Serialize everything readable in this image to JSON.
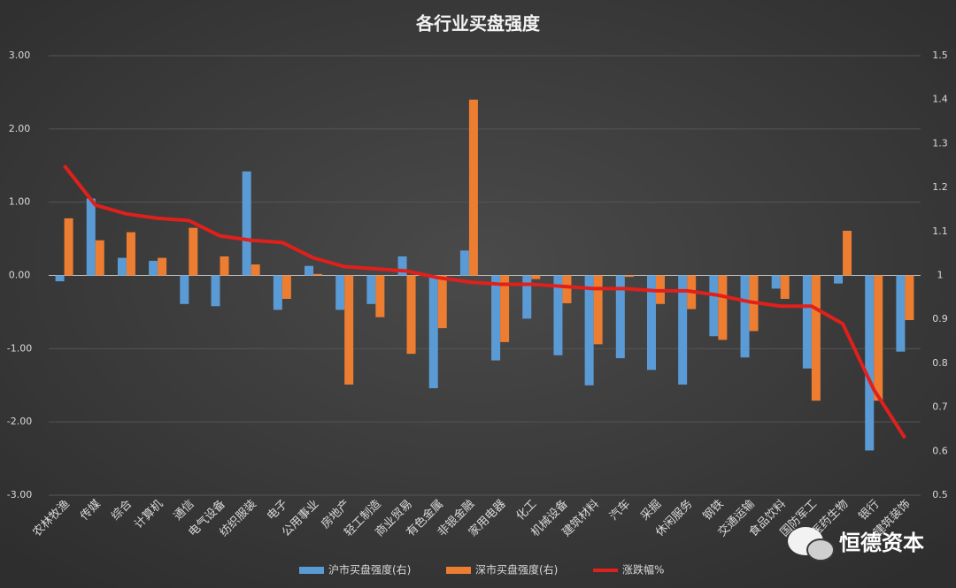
{
  "chart_data": {
    "type": "bar_line",
    "title": "各行业买盘强度",
    "watermark": "恒德资本",
    "categories": [
      "农林牧渔",
      "传媒",
      "综合",
      "计算机",
      "通信",
      "电气设备",
      "纺织服装",
      "电子",
      "公用事业",
      "房地产",
      "轻工制造",
      "商业贸易",
      "有色金属",
      "非银金融",
      "家用电器",
      "化工",
      "机械设备",
      "建筑材料",
      "汽车",
      "采掘",
      "休闲服务",
      "钢铁",
      "交通运输",
      "食品饮料",
      "国防军工",
      "医药生物",
      "银行",
      "建筑装饰"
    ],
    "series": [
      {
        "name": "沪市买盘强度(右)",
        "type": "bar",
        "color": "#5b9bd5",
        "values": [
          -0.08,
          1.05,
          0.24,
          0.2,
          -0.39,
          -0.42,
          1.42,
          -0.47,
          0.13,
          -0.47,
          -0.39,
          0.26,
          -1.54,
          0.34,
          -1.16,
          -0.59,
          -1.09,
          -1.5,
          -1.13,
          -1.29,
          -1.49,
          -0.83,
          -1.12,
          -0.18,
          -1.27,
          -0.11,
          -2.39,
          -1.04
        ]
      },
      {
        "name": "深市买盘强度(右)",
        "type": "bar",
        "color": "#ed7d31",
        "values": [
          0.78,
          0.48,
          0.59,
          0.24,
          0.65,
          0.26,
          0.15,
          -0.32,
          0.02,
          -1.49,
          -0.57,
          -1.07,
          -0.72,
          2.4,
          -0.91,
          -0.05,
          -0.38,
          -0.94,
          -0.02,
          -0.39,
          -0.46,
          -0.88,
          -0.76,
          -0.32,
          -1.71,
          0.61,
          -1.71,
          -0.61
        ]
      },
      {
        "name": "涨跌幅%",
        "type": "line",
        "axis": "y2",
        "color": "#e0201b",
        "values": [
          1.25,
          1.16,
          1.14,
          1.13,
          1.125,
          1.09,
          1.08,
          1.075,
          1.04,
          1.02,
          1.015,
          1.01,
          0.995,
          0.985,
          0.98,
          0.98,
          0.975,
          0.97,
          0.97,
          0.965,
          0.965,
          0.955,
          0.94,
          0.93,
          0.93,
          0.89,
          0.74,
          0.63
        ]
      }
    ],
    "ylim": [
      -3,
      3
    ],
    "yticks": [
      {
        "value": -3,
        "label": "-3.00"
      },
      {
        "value": -2,
        "label": "-2.00"
      },
      {
        "value": -1,
        "label": "-1.00"
      },
      {
        "value": 0,
        "label": "0.00"
      },
      {
        "value": 1,
        "label": "1.00"
      },
      {
        "value": 2,
        "label": "2.00"
      },
      {
        "value": 3,
        "label": "3.00"
      }
    ],
    "y2lim": [
      0.5,
      1.5
    ],
    "y2ticks": [
      0.5,
      0.6,
      0.7,
      0.8,
      0.9,
      1,
      1.1,
      1.2,
      1.3,
      1.4,
      1.5
    ],
    "grid": true,
    "legend": "bottom"
  }
}
